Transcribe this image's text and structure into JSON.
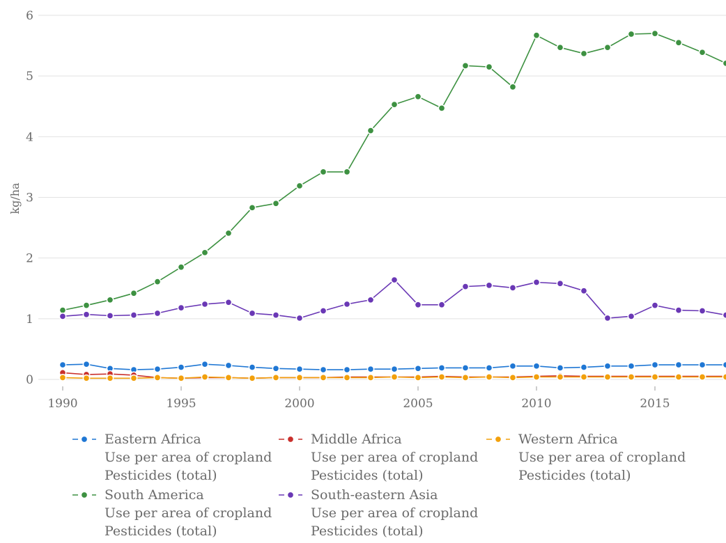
{
  "chart_data": {
    "type": "line",
    "ylabel": "kg/ha",
    "xlabel": "",
    "ylim": [
      0,
      6
    ],
    "xlim": [
      1990,
      2018
    ],
    "y_ticks": [
      "0",
      "1",
      "2",
      "3",
      "4",
      "5",
      "6"
    ],
    "x_ticks": [
      "1990",
      "1995",
      "2000",
      "2005",
      "2010",
      "2015"
    ],
    "grid": "horizontal",
    "legend_position": "bottom",
    "x": [
      1990,
      1991,
      1992,
      1993,
      1994,
      1995,
      1996,
      1997,
      1998,
      1999,
      2000,
      2001,
      2002,
      2003,
      2004,
      2005,
      2006,
      2007,
      2008,
      2009,
      2010,
      2011,
      2012,
      2013,
      2014,
      2015,
      2016,
      2017,
      2018
    ],
    "series": [
      {
        "name": "Eastern Africa",
        "metric": "Use per area of cropland",
        "item": "Pesticides (total)",
        "color": "#1f77d4",
        "values": [
          0.24,
          0.25,
          0.18,
          0.16,
          0.17,
          0.2,
          0.25,
          0.23,
          0.2,
          0.18,
          0.17,
          0.16,
          0.16,
          0.17,
          0.17,
          0.18,
          0.19,
          0.19,
          0.19,
          0.22,
          0.22,
          0.19,
          0.2,
          0.22,
          0.22,
          0.24,
          0.24,
          0.24,
          0.24
        ]
      },
      {
        "name": "Middle Africa",
        "metric": "Use per area of cropland",
        "item": "Pesticides (total)",
        "color": "#c9302c",
        "values": [
          0.11,
          0.08,
          0.09,
          0.07,
          0.03,
          0.02,
          0.03,
          0.03,
          0.02,
          0.03,
          0.03,
          0.03,
          0.04,
          0.04,
          0.04,
          0.04,
          0.05,
          0.04,
          0.04,
          0.04,
          0.05,
          0.06,
          0.05,
          0.05,
          0.05,
          0.05,
          0.05,
          0.05,
          0.05
        ]
      },
      {
        "name": "Western Africa",
        "metric": "Use per area of cropland",
        "item": "Pesticides (total)",
        "color": "#f2a00c",
        "values": [
          0.03,
          0.02,
          0.02,
          0.02,
          0.03,
          0.02,
          0.04,
          0.03,
          0.02,
          0.03,
          0.03,
          0.03,
          0.03,
          0.03,
          0.04,
          0.03,
          0.04,
          0.03,
          0.04,
          0.03,
          0.04,
          0.04,
          0.04,
          0.04,
          0.04,
          0.04,
          0.04,
          0.04,
          0.04
        ]
      },
      {
        "name": "South America",
        "metric": "Use per area of cropland",
        "item": "Pesticides (total)",
        "color": "#3d9141",
        "values": [
          1.14,
          1.22,
          1.31,
          1.42,
          1.61,
          1.85,
          2.09,
          2.41,
          2.83,
          2.9,
          3.19,
          3.42,
          3.42,
          4.1,
          4.53,
          4.66,
          4.47,
          5.17,
          5.15,
          4.82,
          5.67,
          5.47,
          5.37,
          5.47,
          5.69,
          5.7,
          5.55,
          5.39,
          5.21
        ]
      },
      {
        "name": "South-eastern Asia",
        "metric": "Use per area of cropland",
        "item": "Pesticides (total)",
        "color": "#6a38b5",
        "values": [
          1.04,
          1.07,
          1.05,
          1.06,
          1.09,
          1.18,
          1.24,
          1.27,
          1.09,
          1.06,
          1.01,
          1.13,
          1.24,
          1.31,
          1.64,
          1.23,
          1.23,
          1.53,
          1.55,
          1.51,
          1.6,
          1.58,
          1.46,
          1.01,
          1.04,
          1.22,
          1.14,
          1.13,
          1.06
        ]
      }
    ]
  }
}
